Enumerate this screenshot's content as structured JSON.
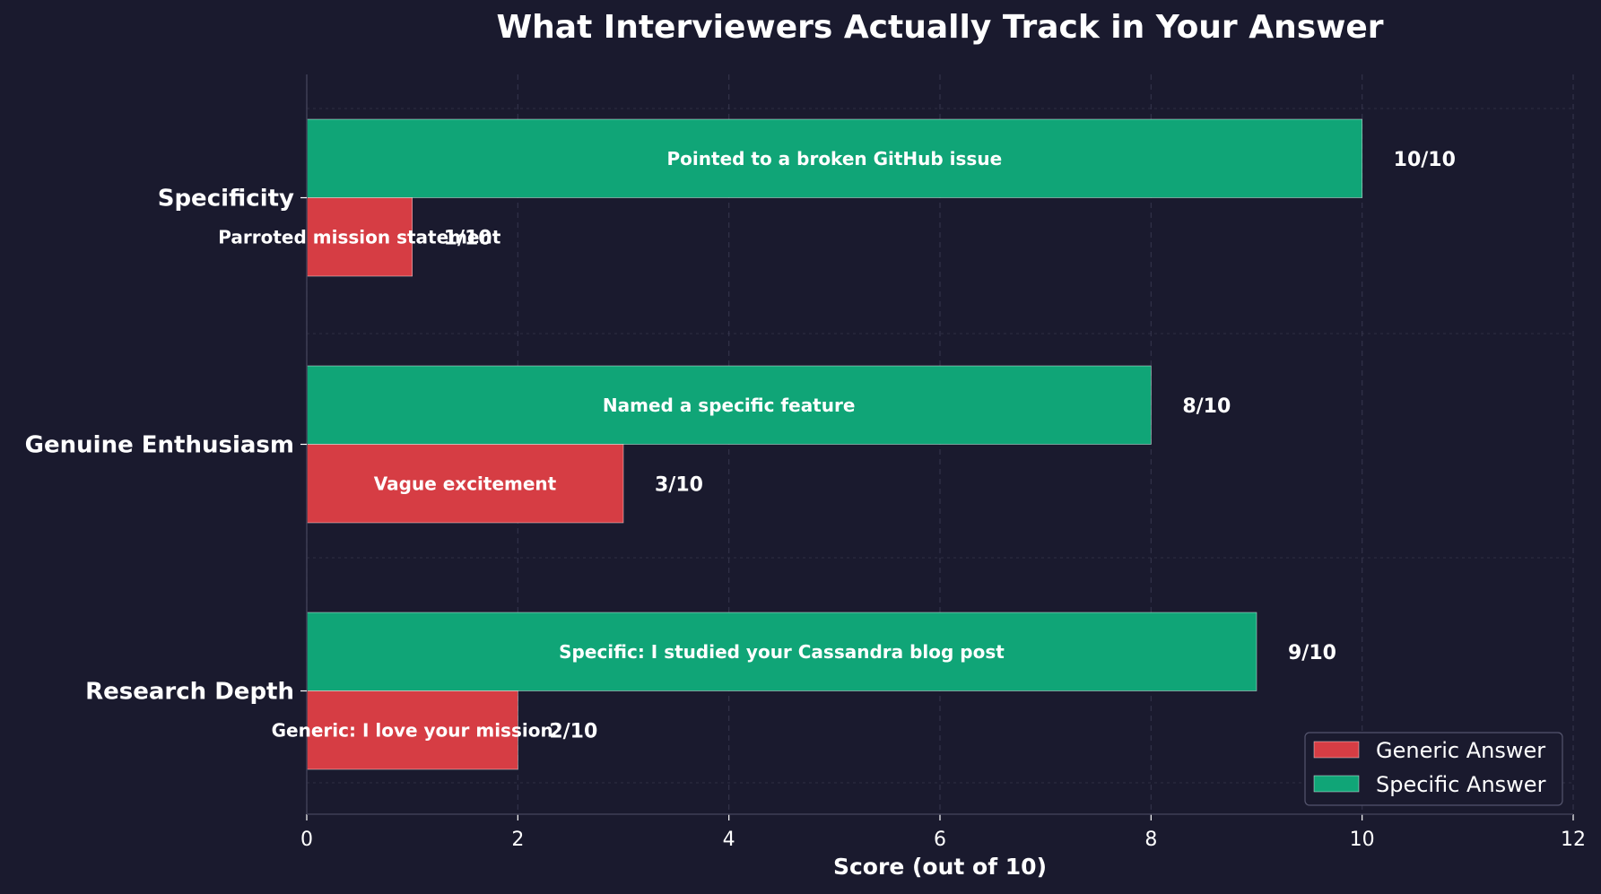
{
  "chart_data": {
    "type": "bar",
    "orientation": "horizontal",
    "title": "What Interviewers Actually Track in Your Answer",
    "xlabel": "Score (out of 10)",
    "ylabel": "",
    "xlim": [
      0,
      12
    ],
    "xticks": [
      "0",
      "2",
      "4",
      "6",
      "8",
      "10",
      "12"
    ],
    "grid": true,
    "legend_position": "bottom-right",
    "categories": [
      "Specificity",
      "Genuine Enthusiasm",
      "Research Depth"
    ],
    "series": [
      {
        "name": "Generic Answer",
        "color": "#d63d44",
        "values": [
          1,
          3,
          2
        ],
        "bar_labels": [
          "Parroted mission statement",
          "Vague excitement",
          "Generic: I love your mission"
        ],
        "value_labels": [
          "1/10",
          "3/10",
          "2/10"
        ]
      },
      {
        "name": "Specific Answer",
        "color": "#10a577",
        "values": [
          10,
          8,
          9
        ],
        "bar_labels": [
          "Pointed to a broken GitHub issue",
          "Named a specific feature",
          "Specific: I studied your Cassandra blog post"
        ],
        "value_labels": [
          "10/10",
          "8/10",
          "9/10"
        ]
      }
    ]
  },
  "colors": {
    "background": "#1a1a2e",
    "grid": "#3a3a52",
    "axis": "#3e3e55",
    "text": "#ffffff"
  }
}
